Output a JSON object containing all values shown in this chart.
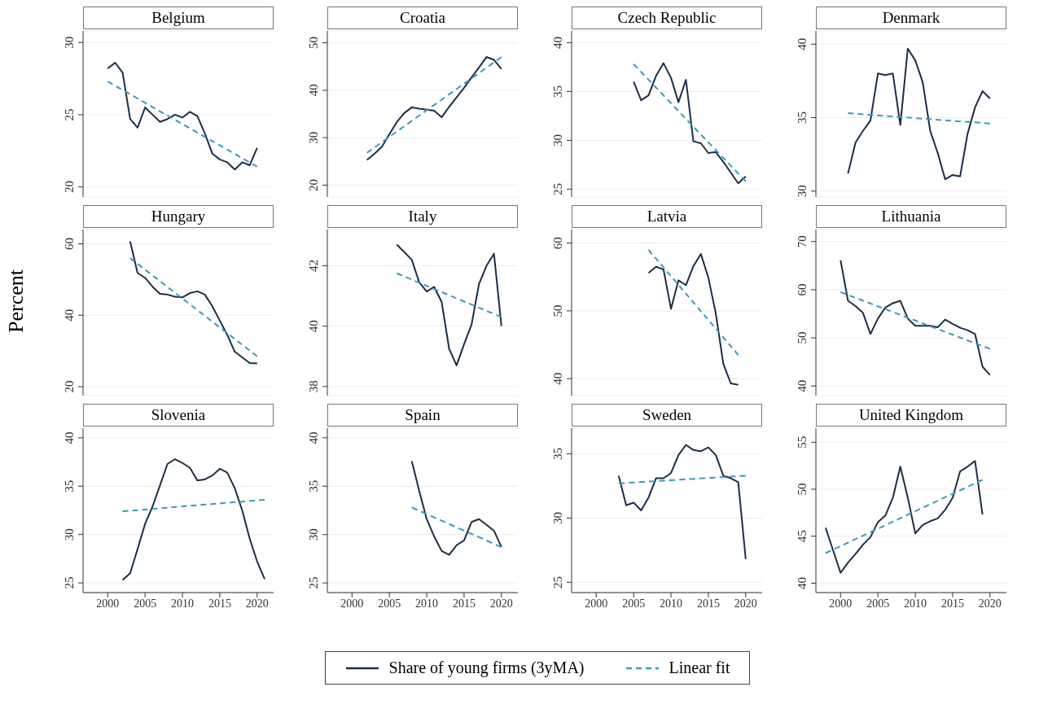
{
  "chart_data": [
    {
      "type": "line",
      "title": "Belgium",
      "xlim": [
        1996.7,
        2022.2
      ],
      "xticks": [
        2000,
        2005,
        2010,
        2015,
        2020
      ],
      "ylim": [
        19.3,
        30.8
      ],
      "yticks": [
        20,
        25,
        30
      ],
      "grid": "y",
      "tick_labels": "y",
      "series": [
        {
          "color": "#1c2d47",
          "line_style": "solid",
          "x": [
            2000,
            2001,
            2002,
            2003,
            2004,
            2005,
            2006,
            2007,
            2008,
            2009,
            2010,
            2011,
            2012,
            2013,
            2014,
            2015,
            2016,
            2017,
            2018,
            2019,
            2020
          ],
          "values": [
            28.2,
            28.6,
            27.9,
            24.7,
            24.1,
            25.5,
            25.0,
            24.5,
            24.7,
            25.0,
            24.8,
            25.2,
            24.9,
            23.7,
            22.3,
            21.9,
            21.7,
            21.2,
            21.7,
            21.5,
            22.7
          ]
        },
        {
          "color": "#3b9ab8",
          "line_style": "dashed",
          "x": [
            2000,
            2020
          ],
          "values": [
            27.3,
            21.4
          ]
        }
      ]
    },
    {
      "type": "line",
      "title": "Croatia",
      "xlim": [
        1996.7,
        2022.2
      ],
      "xticks": [
        2000,
        2005,
        2010,
        2015,
        2020
      ],
      "ylim": [
        17.5,
        52.5
      ],
      "yticks": [
        20,
        30,
        40,
        50
      ],
      "grid": "y",
      "tick_labels": "y",
      "series": [
        {
          "color": "#1c2d47",
          "line_style": "solid",
          "x": [
            2002,
            2003,
            2004,
            2005,
            2006,
            2007,
            2008,
            2009,
            2010,
            2011,
            2012,
            2013,
            2014,
            2015,
            2016,
            2017,
            2018,
            2019,
            2020
          ],
          "values": [
            25.3,
            26.6,
            28.1,
            30.7,
            33.3,
            35.2,
            36.4,
            36.1,
            35.9,
            35.7,
            34.3,
            36.5,
            38.5,
            40.5,
            42.7,
            44.8,
            47.0,
            46.4,
            44.5
          ]
        },
        {
          "color": "#3b9ab8",
          "line_style": "dashed",
          "x": [
            2002,
            2020
          ],
          "values": [
            26.8,
            47.0
          ]
        }
      ]
    },
    {
      "type": "line",
      "title": "Czech Republic",
      "xlim": [
        1996.7,
        2022.2
      ],
      "xticks": [
        2000,
        2005,
        2010,
        2015,
        2020
      ],
      "ylim": [
        24.2,
        41.2
      ],
      "yticks": [
        25,
        30,
        35,
        40
      ],
      "grid": "y",
      "tick_labels": "y",
      "series": [
        {
          "color": "#1c2d47",
          "line_style": "solid",
          "x": [
            2005,
            2006,
            2007,
            2008,
            2009,
            2010,
            2011,
            2012,
            2013,
            2014,
            2015,
            2016,
            2017,
            2018,
            2019,
            2020
          ],
          "values": [
            36.0,
            34.1,
            34.6,
            36.6,
            37.9,
            36.4,
            33.9,
            36.2,
            29.9,
            29.7,
            28.7,
            28.8,
            27.8,
            26.7,
            25.6,
            26.3
          ]
        },
        {
          "color": "#3b9ab8",
          "line_style": "dashed",
          "x": [
            2005,
            2020
          ],
          "values": [
            37.8,
            25.8
          ]
        }
      ]
    },
    {
      "type": "line",
      "title": "Denmark",
      "xlim": [
        1996.7,
        2022.2
      ],
      "xticks": [
        2000,
        2005,
        2010,
        2015,
        2020
      ],
      "ylim": [
        29.6,
        40.9
      ],
      "yticks": [
        30,
        35,
        40
      ],
      "grid": "y",
      "tick_labels": "y",
      "series": [
        {
          "color": "#1c2d47",
          "line_style": "solid",
          "x": [
            2001,
            2002,
            2003,
            2004,
            2005,
            2006,
            2007,
            2008,
            2009,
            2010,
            2011,
            2012,
            2013,
            2014,
            2015,
            2016,
            2017,
            2018,
            2019,
            2020
          ],
          "values": [
            31.2,
            33.3,
            34.1,
            34.8,
            38.0,
            37.9,
            38.0,
            34.5,
            39.7,
            38.9,
            37.4,
            34.1,
            32.6,
            30.8,
            31.1,
            31.0,
            33.9,
            35.7,
            36.8,
            36.3
          ]
        },
        {
          "color": "#3b9ab8",
          "line_style": "dashed",
          "x": [
            2001,
            2020
          ],
          "values": [
            35.3,
            34.6
          ]
        }
      ]
    },
    {
      "type": "line",
      "title": "Hungary",
      "ylabel": "Percent",
      "xlim": [
        1996.7,
        2022.2
      ],
      "xticks": [
        2000,
        2005,
        2010,
        2015,
        2020
      ],
      "ylim": [
        17.5,
        64
      ],
      "yticks": [
        20,
        40,
        60
      ],
      "grid": "y",
      "tick_labels": "y",
      "series": [
        {
          "color": "#1c2d47",
          "line_style": "solid",
          "x": [
            2003,
            2004,
            2005,
            2006,
            2007,
            2008,
            2009,
            2010,
            2011,
            2012,
            2013,
            2014,
            2015,
            2016,
            2017,
            2018,
            2019,
            2020
          ],
          "values": [
            60.7,
            51.8,
            50.5,
            48.0,
            46.0,
            45.8,
            45.2,
            45.0,
            46.2,
            46.7,
            45.8,
            42.5,
            38.5,
            34.5,
            29.8,
            28.2,
            26.6,
            26.5
          ]
        },
        {
          "color": "#3b9ab8",
          "line_style": "dashed",
          "x": [
            2003,
            2020
          ],
          "values": [
            56.0,
            28.5
          ]
        }
      ]
    },
    {
      "type": "line",
      "title": "Italy",
      "xlim": [
        1996.7,
        2022.2
      ],
      "xticks": [
        2000,
        2005,
        2010,
        2015,
        2020
      ],
      "ylim": [
        37.7,
        43.2
      ],
      "yticks": [
        38,
        40,
        42
      ],
      "grid": "y",
      "tick_labels": "y",
      "series": [
        {
          "color": "#1c2d47",
          "line_style": "solid",
          "x": [
            2006,
            2007,
            2008,
            2009,
            2010,
            2011,
            2012,
            2013,
            2014,
            2015,
            2016,
            2017,
            2018,
            2019,
            2020
          ],
          "values": [
            42.7,
            42.45,
            42.2,
            41.45,
            41.15,
            41.3,
            40.8,
            39.25,
            38.7,
            39.4,
            40.05,
            41.4,
            42.0,
            42.4,
            40.0
          ]
        },
        {
          "color": "#3b9ab8",
          "line_style": "dashed",
          "x": [
            2006,
            2020
          ],
          "values": [
            41.75,
            40.3
          ]
        }
      ]
    },
    {
      "type": "line",
      "title": "Latvia",
      "xlim": [
        1996.7,
        2022.2
      ],
      "xticks": [
        2000,
        2005,
        2010,
        2015,
        2020
      ],
      "ylim": [
        37.5,
        62
      ],
      "yticks": [
        40,
        50,
        60
      ],
      "grid": "y",
      "tick_labels": "y",
      "series": [
        {
          "color": "#1c2d47",
          "line_style": "solid",
          "x": [
            2007,
            2008,
            2009,
            2010,
            2011,
            2012,
            2013,
            2014,
            2015,
            2016,
            2017,
            2018,
            2019
          ],
          "values": [
            55.6,
            56.5,
            56.1,
            50.3,
            54.5,
            53.8,
            56.6,
            58.4,
            54.9,
            49.6,
            42.2,
            39.3,
            39.1
          ]
        },
        {
          "color": "#3b9ab8",
          "line_style": "dashed",
          "x": [
            2007,
            2019
          ],
          "values": [
            59.0,
            43.5
          ]
        }
      ]
    },
    {
      "type": "line",
      "title": "Lithuania",
      "xlim": [
        1996.7,
        2022.2
      ],
      "xticks": [
        2000,
        2005,
        2010,
        2015,
        2020
      ],
      "ylim": [
        38,
        72.5
      ],
      "yticks": [
        40,
        50,
        60,
        70
      ],
      "grid": "y",
      "tick_labels": "y",
      "series": [
        {
          "color": "#1c2d47",
          "line_style": "solid",
          "x": [
            2000,
            2001,
            2002,
            2003,
            2004,
            2005,
            2006,
            2007,
            2008,
            2009,
            2010,
            2011,
            2012,
            2013,
            2014,
            2015,
            2016,
            2017,
            2018,
            2019,
            2020
          ],
          "values": [
            66.1,
            57.7,
            56.6,
            55.2,
            50.8,
            54.0,
            56.3,
            57.2,
            57.7,
            54.0,
            52.5,
            52.5,
            52.5,
            52.2,
            53.8,
            52.9,
            52.1,
            51.6,
            50.8,
            44.0,
            42.3
          ]
        },
        {
          "color": "#3b9ab8",
          "line_style": "dashed",
          "x": [
            2000,
            2020
          ],
          "values": [
            59.5,
            47.7
          ]
        }
      ]
    },
    {
      "type": "line",
      "title": "Slovenia",
      "xlim": [
        1996.7,
        2022.2
      ],
      "xticks": [
        2000,
        2005,
        2010,
        2015,
        2020
      ],
      "ylim": [
        24,
        41
      ],
      "yticks": [
        25,
        30,
        35,
        40
      ],
      "grid": "y",
      "series": [
        {
          "color": "#1c2d47",
          "line_style": "solid",
          "x": [
            2002,
            2003,
            2004,
            2005,
            2006,
            2007,
            2008,
            2009,
            2010,
            2011,
            2012,
            2013,
            2014,
            2015,
            2016,
            2017,
            2018,
            2019,
            2020,
            2021
          ],
          "values": [
            25.3,
            26.0,
            28.5,
            31.1,
            32.9,
            35.1,
            37.3,
            37.8,
            37.4,
            36.9,
            35.6,
            35.7,
            36.1,
            36.8,
            36.4,
            34.8,
            32.5,
            29.6,
            27.2,
            25.4
          ]
        },
        {
          "color": "#3b9ab8",
          "line_style": "dashed",
          "x": [
            2002,
            2021
          ],
          "values": [
            32.4,
            33.6
          ]
        }
      ]
    },
    {
      "type": "line",
      "title": "Spain",
      "xlim": [
        1996.7,
        2022.2
      ],
      "xticks": [
        2000,
        2005,
        2010,
        2015,
        2020
      ],
      "ylim": [
        24,
        41
      ],
      "yticks": [
        25,
        30,
        35,
        40
      ],
      "grid": "y",
      "series": [
        {
          "color": "#1c2d47",
          "line_style": "solid",
          "x": [
            2008,
            2009,
            2010,
            2011,
            2012,
            2013,
            2014,
            2015,
            2016,
            2017,
            2018,
            2019,
            2020
          ],
          "values": [
            37.6,
            34.5,
            31.6,
            29.8,
            28.3,
            27.9,
            28.9,
            29.4,
            31.3,
            31.6,
            31.0,
            30.4,
            28.7
          ]
        },
        {
          "color": "#3b9ab8",
          "line_style": "dashed",
          "x": [
            2008,
            2020
          ],
          "values": [
            32.8,
            28.7
          ]
        }
      ]
    },
    {
      "type": "line",
      "title": "Sweden",
      "xlim": [
        1996.7,
        2022.2
      ],
      "xticks": [
        2000,
        2005,
        2010,
        2015,
        2020
      ],
      "ylim": [
        24.2,
        37
      ],
      "yticks": [
        25,
        30,
        35
      ],
      "grid": "y",
      "series": [
        {
          "color": "#1c2d47",
          "line_style": "solid",
          "x": [
            2003,
            2004,
            2005,
            2006,
            2007,
            2008,
            2009,
            2010,
            2011,
            2012,
            2013,
            2014,
            2015,
            2016,
            2017,
            2018,
            2019,
            2020
          ],
          "values": [
            33.3,
            31.0,
            31.2,
            30.6,
            31.6,
            33.1,
            33.1,
            33.5,
            34.9,
            35.7,
            35.3,
            35.2,
            35.5,
            34.9,
            33.3,
            33.1,
            32.8,
            26.8
          ]
        },
        {
          "color": "#3b9ab8",
          "line_style": "dashed",
          "x": [
            2003,
            2020
          ],
          "values": [
            32.7,
            33.3
          ]
        }
      ]
    },
    {
      "type": "line",
      "title": "United Kingdom",
      "xlim": [
        1996.7,
        2022.2
      ],
      "xticks": [
        2000,
        2005,
        2010,
        2015,
        2020
      ],
      "ylim": [
        39,
        56.5
      ],
      "yticks": [
        40,
        45,
        50,
        55
      ],
      "grid": "y",
      "legend": "bottom",
      "series": [
        {
          "name": "Share of young firms (3yMA)",
          "color": "#1c2d47",
          "line_style": "solid",
          "x": [
            1998,
            1999,
            2000,
            2001,
            2002,
            2003,
            2004,
            2005,
            2006,
            2007,
            2008,
            2009,
            2010,
            2011,
            2012,
            2013,
            2014,
            2015,
            2016,
            2017,
            2018,
            2019
          ],
          "values": [
            45.9,
            43.5,
            41.1,
            42.2,
            43.1,
            44.1,
            44.9,
            46.5,
            47.2,
            49.1,
            52.4,
            49.1,
            45.3,
            46.2,
            46.6,
            46.9,
            47.8,
            49.1,
            51.9,
            52.4,
            53.0,
            47.3
          ]
        },
        {
          "name": "Linear fit",
          "color": "#3b9ab8",
          "line_style": "dashed",
          "x": [
            1998,
            2019
          ],
          "values": [
            43.2,
            51.0
          ]
        }
      ]
    }
  ]
}
